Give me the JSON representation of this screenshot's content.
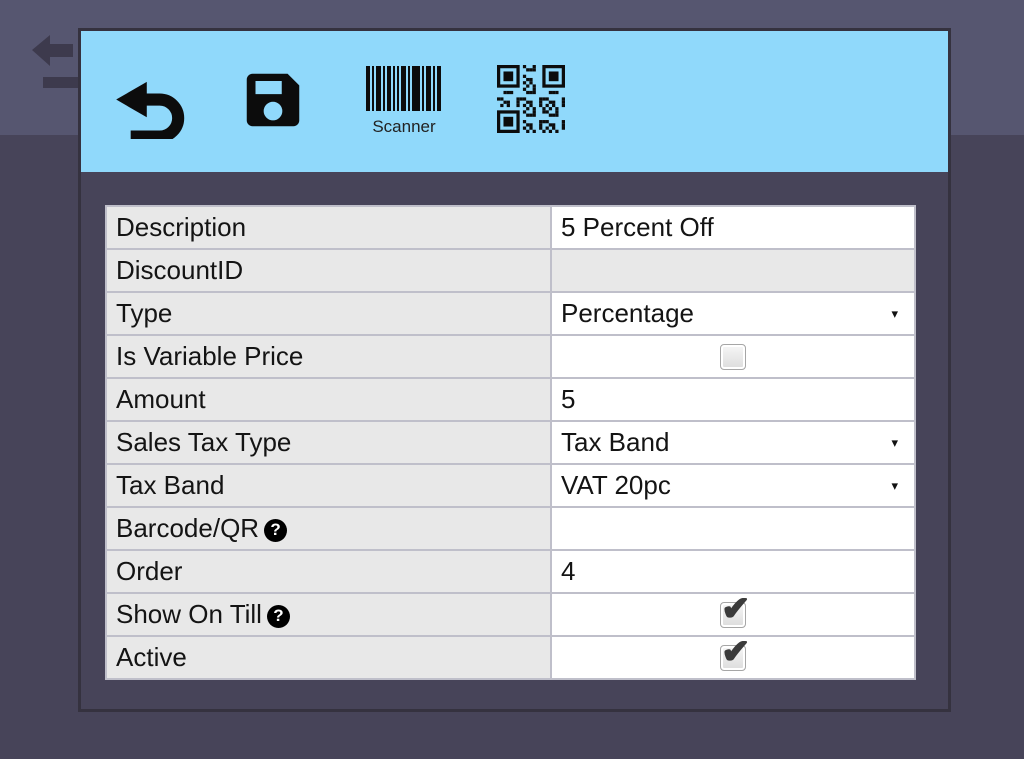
{
  "colors": {
    "toolbar_bg": "#90d9fb",
    "page_top_bg": "#565670",
    "page_bg": "#474459",
    "label_cell_bg": "#e8e8e8",
    "value_cell_bg": "#ffffff",
    "dialog_border": "#35323f",
    "icon_color": "#0c0c0c"
  },
  "icons": {
    "checkmark": "✔",
    "dropdown_arrow": "▾",
    "help": "?"
  },
  "toolbar": {
    "back_icon": "undo-arrow-icon",
    "save_icon": "floppy-disk-icon",
    "scanner_label": "Scanner",
    "qr_icon": "qr-code-icon"
  },
  "form": {
    "rows": [
      {
        "label": "Description",
        "type": "text",
        "value": "5 Percent Off"
      },
      {
        "label": "DiscountID",
        "type": "readonly",
        "value": ""
      },
      {
        "label": "Type",
        "type": "select",
        "value": "Percentage"
      },
      {
        "label": "Is Variable Price",
        "type": "checkbox",
        "checked": false
      },
      {
        "label": "Amount",
        "type": "text",
        "value": "5"
      },
      {
        "label": "Sales Tax Type",
        "type": "select",
        "value": "Tax Band"
      },
      {
        "label": "Tax Band",
        "type": "select",
        "value": "VAT 20pc"
      },
      {
        "label": "Barcode/QR",
        "type": "text",
        "value": "",
        "help": true
      },
      {
        "label": "Order",
        "type": "text",
        "value": "4"
      },
      {
        "label": "Show On Till",
        "type": "checkbox",
        "checked": true,
        "help": true
      },
      {
        "label": "Active",
        "type": "checkbox",
        "checked": true
      }
    ]
  }
}
